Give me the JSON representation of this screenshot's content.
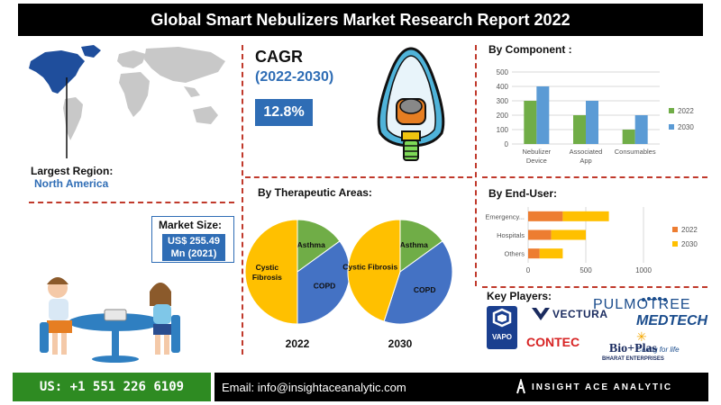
{
  "header": {
    "title": "Global Smart Nebulizers Market Research Report 2022"
  },
  "region": {
    "label": "Largest Region:",
    "value": "North America"
  },
  "market_size": {
    "label": "Market Size:",
    "value_line1": "US$ 255.49",
    "value_line2": "Mn (2021)"
  },
  "cagr": {
    "title": "CAGR",
    "period": "(2022-2030)",
    "value": "12.8%"
  },
  "sections": {
    "component": "By Component :",
    "therapeutic": "By Therapeutic Areas:",
    "end_user": "By End-User:",
    "key_players": "Key Players:"
  },
  "players": {
    "vapo": "VAPO",
    "vectura": "VECTURA",
    "pulmotree": "PULMOTREE",
    "medtech": "MEDTECH",
    "medtech_tag": "Caring for life",
    "contec": "CONTEC",
    "bioplas": "Bio+Plas",
    "bioplas_sub": "BHARAT ENTERPRISES"
  },
  "footer": {
    "phone": "US: +1 551 226 6109",
    "email": "Email: info@insightaceanalytic.com",
    "brand": "INSIGHT ACE ANALYTIC"
  },
  "colors": {
    "blue": "#2f6db5",
    "green_bar": "#70ad47",
    "blue_bar": "#5b9bd5",
    "orange_bar": "#ed7d31",
    "yellow_bar": "#ffc000",
    "pie_yellow": "#ffc000",
    "pie_green": "#70ad47",
    "pie_blue": "#4472c4",
    "footer_green": "#2e8b22",
    "divider": "#c0392b"
  },
  "chart_data": [
    {
      "type": "bar",
      "categories": [
        "Nebulizer Device",
        "Associated App",
        "Consumables"
      ],
      "series": [
        {
          "name": "2022",
          "values": [
            300,
            200,
            100
          ]
        },
        {
          "name": "2030",
          "values": [
            400,
            300,
            200
          ]
        }
      ],
      "ylim": [
        0,
        500
      ],
      "yticks": [
        "0",
        "100",
        "200",
        "300",
        "400",
        "500"
      ],
      "legend": "right"
    },
    {
      "type": "bar",
      "orientation": "horizontal",
      "categories": [
        "Emergency...",
        "Hospitals",
        "Others"
      ],
      "series": [
        {
          "name": "2022",
          "values": [
            300,
            200,
            100
          ]
        },
        {
          "name": "2030",
          "values": [
            400,
            300,
            200
          ]
        }
      ],
      "xlim": [
        0,
        1000
      ],
      "xticks": [
        "0",
        "500",
        "1000"
      ],
      "legend": "right"
    },
    {
      "type": "pie",
      "label": "2022",
      "slices": [
        {
          "name": "Cystic Fibrosis",
          "value": 50
        },
        {
          "name": "Asthma",
          "value": 15
        },
        {
          "name": "COPD",
          "value": 35
        }
      ]
    },
    {
      "type": "pie",
      "label": "2030",
      "slices": [
        {
          "name": "Cystic Fibrosis",
          "value": 45
        },
        {
          "name": "Asthma",
          "value": 15
        },
        {
          "name": "COPD",
          "value": 40
        }
      ]
    }
  ]
}
